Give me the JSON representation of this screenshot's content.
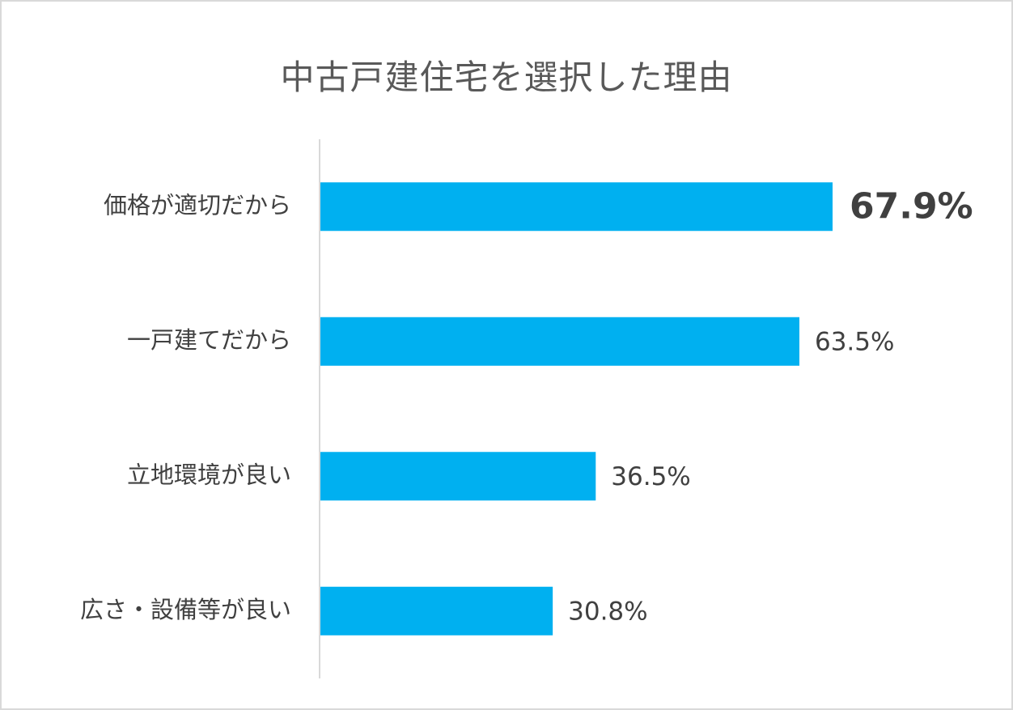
{
  "chart_data": {
    "type": "bar",
    "orientation": "horizontal",
    "title": "中古戸建住宅を選択した理由",
    "categories": [
      "価格が適切だから",
      "一戸建てだから",
      "立地環境が良い",
      "広さ・設備等が良い"
    ],
    "values": [
      67.9,
      63.5,
      36.5,
      30.8
    ],
    "value_labels": [
      "67.9%",
      "63.5%",
      "36.5%",
      "30.8%"
    ],
    "unit": "%",
    "xlim": [
      0,
      100
    ],
    "grid": false,
    "legend": "none",
    "colors": {
      "bar": "#00B0F0",
      "axis": "#d9d9d9",
      "highlight_label": "#FF0000",
      "label": "#404040",
      "title": "#595959"
    },
    "highlight_index": 0
  }
}
